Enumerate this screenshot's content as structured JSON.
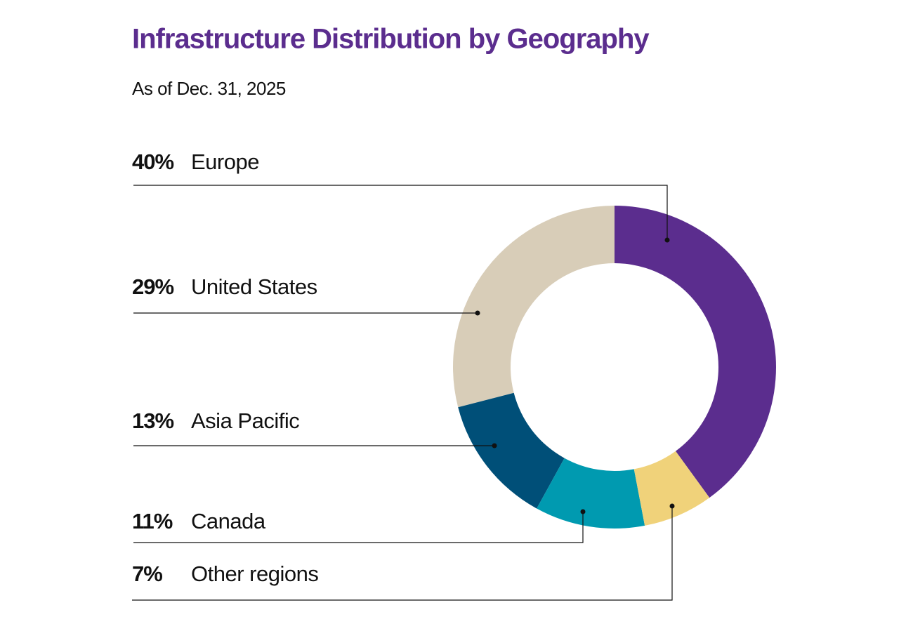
{
  "chart_data": {
    "type": "donut",
    "title": "Infrastructure Distribution by Geography",
    "subtitle": "As of Dec. 31, 2025",
    "categories": [
      "Europe",
      "United States",
      "Asia Pacific",
      "Canada",
      "Other regions"
    ],
    "values": [
      40,
      29,
      13,
      11,
      7
    ],
    "value_labels": [
      "40%",
      "29%",
      "13%",
      "11%",
      "7%"
    ],
    "colors": [
      "#5b2d8e",
      "#d8cdb8",
      "#004f78",
      "#009ab0",
      "#f0d27a"
    ]
  }
}
